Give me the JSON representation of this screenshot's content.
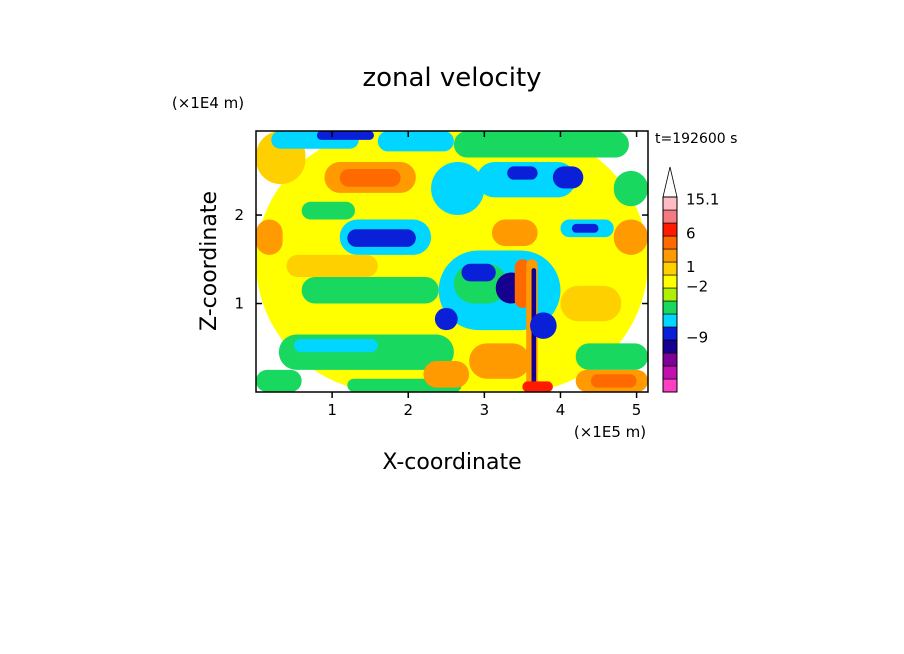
{
  "chart_data": {
    "type": "heatmap",
    "title": "zonal velocity",
    "xlabel": "X-coordinate",
    "ylabel": "Z-coordinate",
    "x_unit": "(×1E5 m)",
    "y_unit": "(×1E4 m)",
    "time_label": "t=192600 s",
    "xlim": [
      0,
      5.15
    ],
    "ylim": [
      0,
      2.95
    ],
    "x_ticks": [
      1,
      2,
      3,
      4,
      5
    ],
    "y_ticks": [
      1,
      2
    ],
    "colorbar": {
      "levels": [
        {
          "color": "#ff3ec6"
        },
        {
          "color": "#c010b0"
        },
        {
          "color": "#7d0098"
        },
        {
          "color": "#15008f"
        },
        {
          "color": "#0a20d8"
        },
        {
          "color": "#00d6ff"
        },
        {
          "color": "#18d860"
        },
        {
          "color": "#aef000"
        },
        {
          "color": "#ffff00"
        },
        {
          "color": "#ffd000"
        },
        {
          "color": "#ff9a00"
        },
        {
          "color": "#ff6a00"
        },
        {
          "color": "#ff1a00"
        },
        {
          "color": "#f37a80"
        },
        {
          "color": "#ffbcc4"
        }
      ],
      "labels": [
        {
          "text": "15.1",
          "level": 14.8
        },
        {
          "text": "6",
          "level": 12.2
        },
        {
          "text": "1",
          "level": 9.6
        },
        {
          "text": "−2",
          "level": 8.1
        },
        {
          "text": "−9",
          "level": 4.2
        }
      ],
      "extend": "max"
    },
    "regions": [
      {
        "x": [
          0.0,
          5.15
        ],
        "z": [
          0.0,
          2.95
        ],
        "color": "#ffff00"
      },
      {
        "x": [
          0.0,
          0.65
        ],
        "z": [
          2.35,
          2.95
        ],
        "color": "#ffd000"
      },
      {
        "x": [
          0.2,
          1.35
        ],
        "z": [
          2.75,
          2.95
        ],
        "color": "#00d6ff"
      },
      {
        "x": [
          0.8,
          1.55
        ],
        "z": [
          2.85,
          2.95
        ],
        "color": "#0a20d8"
      },
      {
        "x": [
          1.6,
          2.6
        ],
        "z": [
          2.72,
          2.95
        ],
        "color": "#00d6ff"
      },
      {
        "x": [
          2.6,
          4.9
        ],
        "z": [
          2.65,
          2.95
        ],
        "color": "#18d860"
      },
      {
        "x": [
          0.9,
          2.1
        ],
        "z": [
          2.25,
          2.6
        ],
        "color": "#ff9a00"
      },
      {
        "x": [
          1.1,
          1.9
        ],
        "z": [
          2.32,
          2.52
        ],
        "color": "#ff6a00"
      },
      {
        "x": [
          0.6,
          1.3
        ],
        "z": [
          1.95,
          2.15
        ],
        "color": "#18d860"
      },
      {
        "x": [
          1.1,
          2.3
        ],
        "z": [
          1.55,
          1.95
        ],
        "color": "#00d6ff"
      },
      {
        "x": [
          1.2,
          2.1
        ],
        "z": [
          1.64,
          1.84
        ],
        "color": "#0a20d8"
      },
      {
        "x": [
          0.0,
          0.35
        ],
        "z": [
          1.55,
          1.95
        ],
        "color": "#ff9a00"
      },
      {
        "x": [
          0.4,
          1.6
        ],
        "z": [
          1.3,
          1.55
        ],
        "color": "#ffd000"
      },
      {
        "x": [
          0.6,
          2.4
        ],
        "z": [
          1.0,
          1.3
        ],
        "color": "#18d860"
      },
      {
        "x": [
          0.3,
          2.6
        ],
        "z": [
          0.25,
          0.65
        ],
        "color": "#18d860"
      },
      {
        "x": [
          0.5,
          1.6
        ],
        "z": [
          0.45,
          0.6
        ],
        "color": "#00d6ff"
      },
      {
        "x": [
          0.0,
          0.6
        ],
        "z": [
          0.0,
          0.25
        ],
        "color": "#18d860"
      },
      {
        "x": [
          1.2,
          2.7
        ],
        "z": [
          0.0,
          0.15
        ],
        "color": "#18d860"
      },
      {
        "x": [
          2.2,
          2.8
        ],
        "z": [
          0.05,
          0.35
        ],
        "color": "#ff9a00"
      },
      {
        "x": [
          2.3,
          3.0
        ],
        "z": [
          2.0,
          2.6
        ],
        "color": "#00d6ff"
      },
      {
        "x": [
          2.9,
          4.2
        ],
        "z": [
          2.2,
          2.6
        ],
        "color": "#00d6ff"
      },
      {
        "x": [
          3.3,
          3.7
        ],
        "z": [
          2.4,
          2.55
        ],
        "color": "#0a20d8"
      },
      {
        "x": [
          3.9,
          4.3
        ],
        "z": [
          2.3,
          2.55
        ],
        "color": "#0a20d8"
      },
      {
        "x": [
          3.1,
          3.7
        ],
        "z": [
          1.65,
          1.95
        ],
        "color": "#ff9a00"
      },
      {
        "x": [
          4.0,
          4.7
        ],
        "z": [
          1.75,
          1.95
        ],
        "color": "#00d6ff"
      },
      {
        "x": [
          4.15,
          4.5
        ],
        "z": [
          1.8,
          1.9
        ],
        "color": "#0a20d8"
      },
      {
        "x": [
          4.7,
          5.15
        ],
        "z": [
          1.55,
          1.95
        ],
        "color": "#ff9a00"
      },
      {
        "x": [
          2.4,
          4.0
        ],
        "z": [
          0.7,
          1.6
        ],
        "color": "#00d6ff"
      },
      {
        "x": [
          2.6,
          3.3
        ],
        "z": [
          1.0,
          1.45
        ],
        "color": "#18d860"
      },
      {
        "x": [
          3.15,
          3.55
        ],
        "z": [
          1.0,
          1.35
        ],
        "color": "#15008f"
      },
      {
        "x": [
          2.7,
          3.15
        ],
        "z": [
          1.25,
          1.45
        ],
        "color": "#0a20d8"
      },
      {
        "x": [
          2.35,
          2.65
        ],
        "z": [
          0.7,
          0.95
        ],
        "color": "#0a20d8"
      },
      {
        "x": [
          3.4,
          3.6
        ],
        "z": [
          0.95,
          1.5
        ],
        "color": "#ff6a00"
      },
      {
        "x": [
          3.55,
          3.7
        ],
        "z": [
          0.0,
          1.5
        ],
        "color": "#ff9a00"
      },
      {
        "x": [
          3.62,
          3.68
        ],
        "z": [
          0.0,
          1.4
        ],
        "color": "#15008f"
      },
      {
        "x": [
          3.6,
          3.95
        ],
        "z": [
          0.6,
          0.9
        ],
        "color": "#0a20d8"
      },
      {
        "x": [
          4.0,
          4.8
        ],
        "z": [
          0.8,
          1.2
        ],
        "color": "#ffd000"
      },
      {
        "x": [
          2.8,
          3.6
        ],
        "z": [
          0.15,
          0.55
        ],
        "color": "#ff9a00"
      },
      {
        "x": [
          4.2,
          5.15
        ],
        "z": [
          0.25,
          0.55
        ],
        "color": "#18d860"
      },
      {
        "x": [
          4.2,
          5.15
        ],
        "z": [
          0.0,
          0.25
        ],
        "color": "#ff9a00"
      },
      {
        "x": [
          4.4,
          5.0
        ],
        "z": [
          0.05,
          0.2
        ],
        "color": "#ff6a00"
      },
      {
        "x": [
          4.7,
          5.15
        ],
        "z": [
          2.1,
          2.5
        ],
        "color": "#18d860"
      },
      {
        "x": [
          3.5,
          3.9
        ],
        "z": [
          0.0,
          0.12
        ],
        "color": "#ff1a00"
      }
    ]
  }
}
